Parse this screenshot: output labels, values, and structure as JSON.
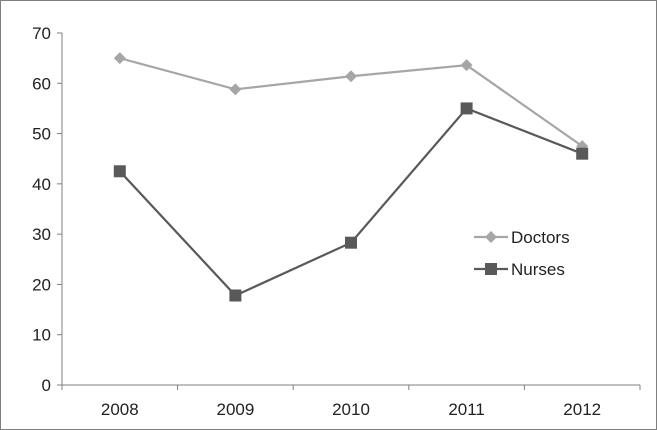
{
  "chart_data": {
    "type": "line",
    "categories": [
      "2008",
      "2009",
      "2010",
      "2011",
      "2012"
    ],
    "series": [
      {
        "name": "Doctors",
        "values": [
          65,
          58.8,
          61.4,
          63.6,
          47.5
        ],
        "color": "#a6a6a6",
        "marker": "diamond"
      },
      {
        "name": "Nurses",
        "values": [
          42.5,
          17.8,
          28.3,
          55,
          46
        ],
        "color": "#595959",
        "marker": "square"
      }
    ],
    "yticks": [
      0,
      10,
      20,
      30,
      40,
      50,
      60,
      70
    ],
    "ylim": [
      0,
      70
    ],
    "grid": false,
    "legend_position": "right-middle",
    "title": "",
    "xlabel": "",
    "ylabel": ""
  }
}
